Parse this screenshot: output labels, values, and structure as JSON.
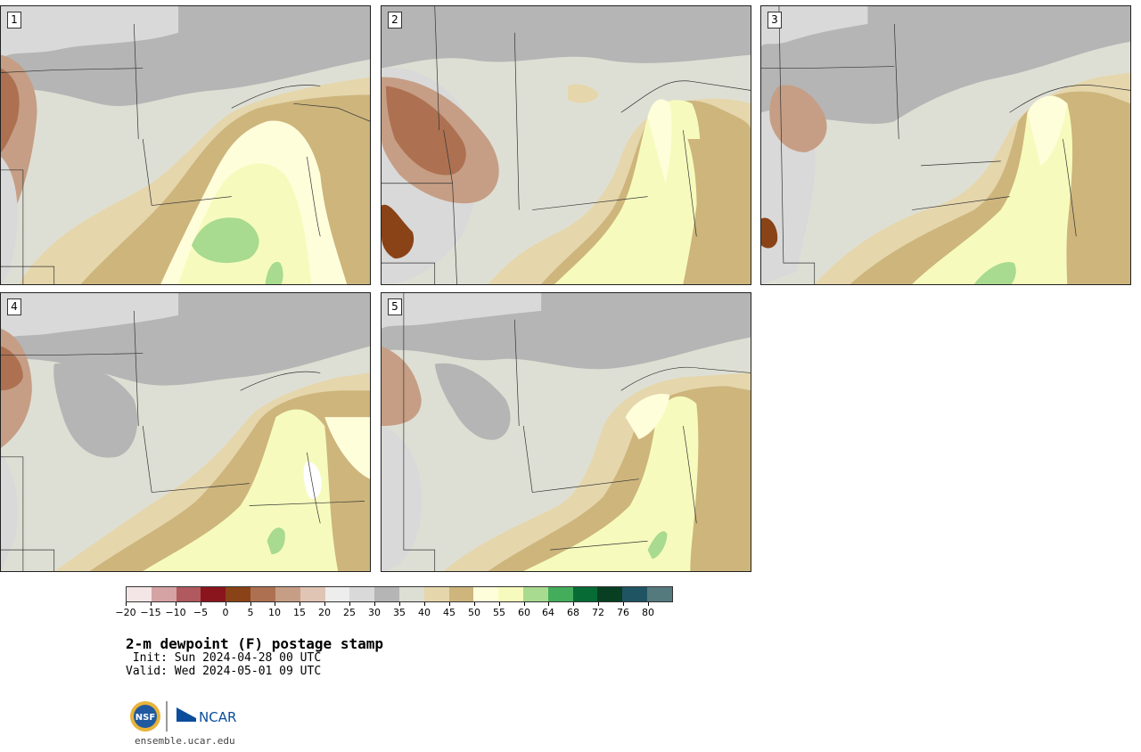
{
  "panels": [
    {
      "label": "1"
    },
    {
      "label": "2"
    },
    {
      "label": "3"
    },
    {
      "label": "4"
    },
    {
      "label": "5"
    }
  ],
  "colorbar": {
    "colors": [
      "#f4e6e6",
      "#d6a3a5",
      "#b0595e",
      "#8b151d",
      "#8a4316",
      "#ad7152",
      "#c69e85",
      "#e0c4b4",
      "#ededed",
      "#d9d9d9",
      "#b5b5b5",
      "#dedfd4",
      "#e5d6ac",
      "#cdb57c",
      "#fffedb",
      "#f6fbbd",
      "#a8da8f",
      "#43ad5b",
      "#066b34",
      "#083f22",
      "#1f5463",
      "#557a7e"
    ],
    "ticks": [
      "−20",
      "−15",
      "−10",
      "−5",
      "0",
      "5",
      "10",
      "15",
      "20",
      "25",
      "30",
      "35",
      "40",
      "45",
      "50",
      "55",
      "60",
      "64",
      "68",
      "72",
      "76",
      "80"
    ]
  },
  "title": "2-m dewpoint (F) postage stamp",
  "init": " Init: Sun 2024-04-28 00 UTC",
  "valid": "Valid: Wed 2024-05-01 09 UTC",
  "logo": {
    "nsf": "NSF",
    "ncar": "NCAR"
  },
  "site": "ensemble.ucar.edu"
}
